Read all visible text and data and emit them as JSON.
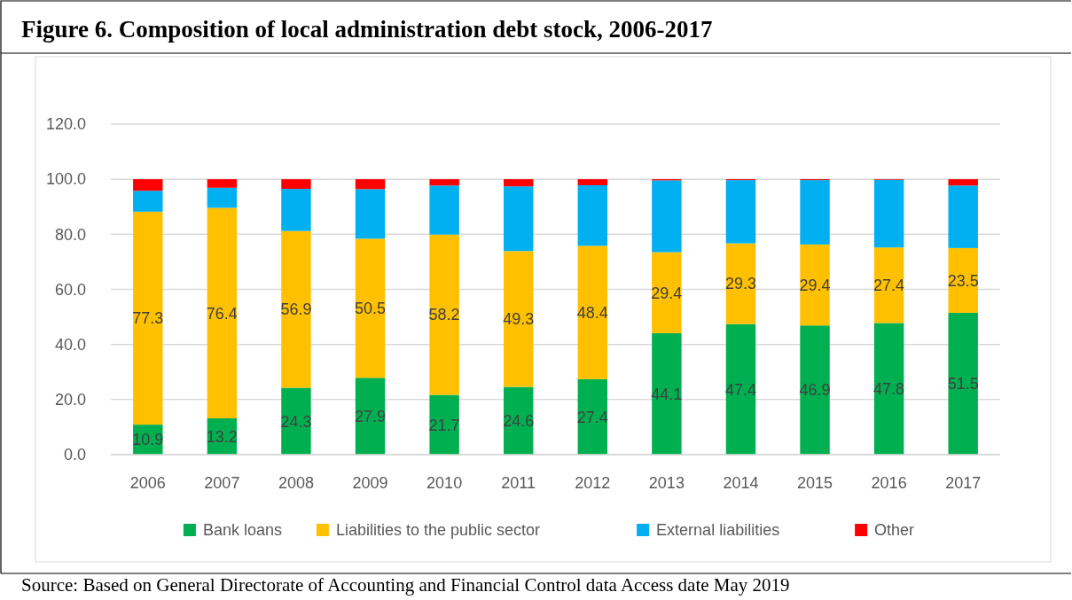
{
  "chart_data": {
    "type": "bar",
    "stacked": true,
    "title": "Figure 6. Composition of local administration debt stock, 2006-2017",
    "categories": [
      "2006",
      "2007",
      "2008",
      "2009",
      "2010",
      "2011",
      "2012",
      "2013",
      "2014",
      "2015",
      "2016",
      "2017"
    ],
    "series": [
      {
        "name": "Bank loans",
        "color": "#00b050",
        "values": [
          10.9,
          13.2,
          24.3,
          27.9,
          21.7,
          24.6,
          27.4,
          44.1,
          47.4,
          46.9,
          47.8,
          51.5
        ],
        "value_labels": [
          "10.9",
          "13.2",
          "24.3",
          "27.9",
          "21.7",
          "24.6",
          "27.4",
          "44.1",
          "47.4",
          "46.9",
          "47.8",
          "51.5"
        ]
      },
      {
        "name": "Liabilities to the public sector",
        "color": "#ffc000",
        "values": [
          77.3,
          76.4,
          56.9,
          50.5,
          58.2,
          49.3,
          48.4,
          29.4,
          29.3,
          29.4,
          27.4,
          23.5
        ],
        "value_labels": [
          "77.3",
          "76.4",
          "56.9",
          "50.5",
          "58.2",
          "49.3",
          "48.4",
          "29.4",
          "29.3",
          "29.4",
          "27.4",
          "23.5"
        ]
      },
      {
        "name": "External liabilities",
        "color": "#00b0f0",
        "values": [
          7.6,
          7.3,
          15.3,
          18.0,
          17.8,
          23.5,
          22.0,
          26.1,
          23.0,
          23.4,
          24.6,
          22.7
        ]
      },
      {
        "name": "Other",
        "color": "#ff0000",
        "values": [
          4.2,
          3.1,
          3.5,
          3.6,
          2.3,
          2.6,
          2.2,
          0.4,
          0.3,
          0.3,
          0.2,
          2.3
        ]
      }
    ],
    "ylim": [
      0,
      120
    ],
    "yticks": [
      {
        "value": 0,
        "label": "0.0"
      },
      {
        "value": 20,
        "label": "20.0"
      },
      {
        "value": 40,
        "label": "40.0"
      },
      {
        "value": 60,
        "label": "60.0"
      },
      {
        "value": 80,
        "label": "80.0"
      },
      {
        "value": 100,
        "label": "100.0"
      },
      {
        "value": 120,
        "label": "120.0"
      }
    ],
    "grid": "y",
    "legend": "bottom",
    "annotations": [
      "Source: Based on General Directorate of Accounting and Financial Control data Access date May 2019"
    ]
  }
}
